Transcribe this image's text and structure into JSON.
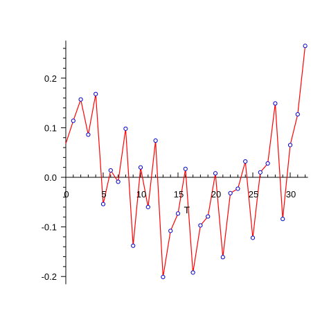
{
  "chart_data": {
    "type": "line",
    "xlabel": "T",
    "ylabel": "",
    "xlim": [
      0,
      32
    ],
    "ylim": [
      -0.21,
      0.27
    ],
    "x_ticks": [
      0,
      5,
      10,
      15,
      20,
      25,
      30
    ],
    "y_ticks": [
      -0.2,
      -0.1,
      0.0,
      0.1,
      0.2
    ],
    "x_tick_labels": [
      "0",
      "5",
      "10",
      "15",
      "20",
      "25",
      "30"
    ],
    "y_tick_labels": [
      "-0.2",
      "-0.1",
      "0.0",
      "0.1",
      "0.2"
    ],
    "colors": {
      "line": "#ff0000",
      "markers": "#0000cc",
      "axes": "#000000"
    },
    "series": [
      {
        "x": [
          0,
          1,
          2,
          3,
          4,
          5,
          6,
          7,
          8,
          9,
          10,
          11,
          12,
          13,
          14,
          15,
          16,
          17,
          18,
          19,
          20,
          21,
          22,
          23,
          24,
          25,
          26,
          27,
          28,
          29,
          30,
          31,
          32
        ],
        "values": [
          0.068,
          0.114,
          0.157,
          0.086,
          0.168,
          -0.054,
          0.014,
          -0.009,
          0.098,
          -0.138,
          0.02,
          -0.06,
          0.074,
          -0.201,
          -0.108,
          -0.073,
          0.017,
          -0.192,
          -0.097,
          -0.079,
          0.008,
          -0.161,
          -0.032,
          -0.023,
          0.032,
          -0.122,
          0.01,
          0.028,
          0.149,
          -0.084,
          0.065,
          0.127,
          0.265
        ],
        "marker_indices": [
          1,
          2,
          3,
          4,
          5,
          6,
          7,
          8,
          9,
          10,
          11,
          12,
          13,
          14,
          15,
          16,
          17,
          18,
          19,
          20,
          21,
          22,
          23,
          24,
          25,
          26,
          27,
          28,
          29,
          30,
          31,
          32
        ]
      }
    ]
  }
}
